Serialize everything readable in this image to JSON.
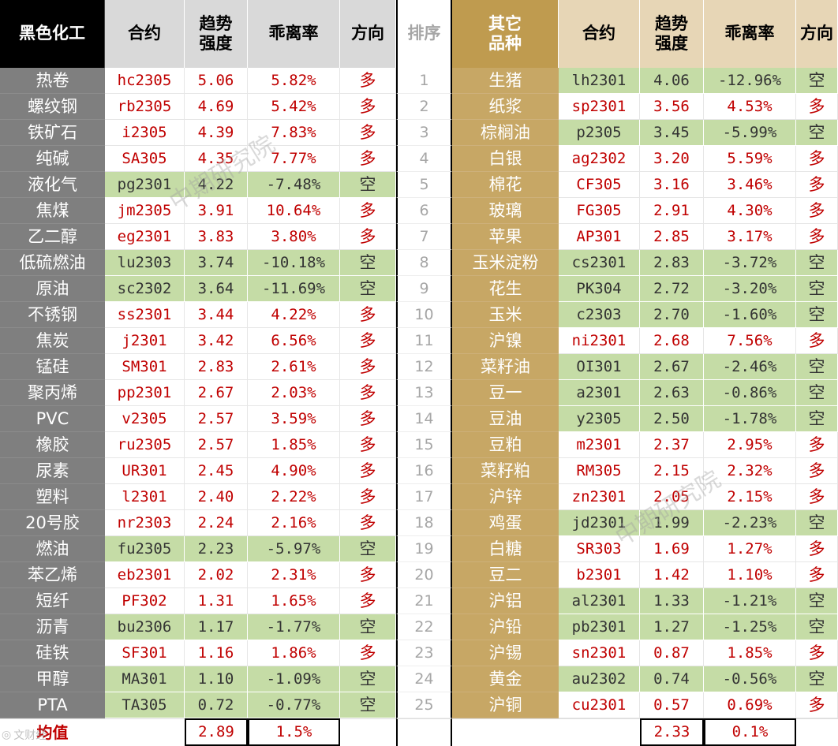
{
  "headers": {
    "left_group": "黑色化工",
    "contract": "合约",
    "trend": "趋势\n强度",
    "deviation": "乖离率",
    "direction": "方向",
    "rank": "排序",
    "right_group": "其它\n品种"
  },
  "colors": {
    "long_text": "#c00000",
    "short_fill": "#c5dca6",
    "left_header": "#000000",
    "left_name": "#7f7f7f",
    "right_header": "#bf9b4f",
    "right_name": "#c7a765"
  },
  "ranks": [
    "1",
    "2",
    "3",
    "4",
    "5",
    "6",
    "7",
    "8",
    "9",
    "10",
    "11",
    "12",
    "13",
    "14",
    "15",
    "16",
    "17",
    "18",
    "19",
    "20",
    "21",
    "22",
    "23",
    "24",
    "25"
  ],
  "left_rows": [
    {
      "name": "热卷",
      "contract": "hc2305",
      "trend": "5.06",
      "dev": "5.82%",
      "dir": "多"
    },
    {
      "name": "螺纹钢",
      "contract": "rb2305",
      "trend": "4.69",
      "dev": "5.42%",
      "dir": "多"
    },
    {
      "name": "铁矿石",
      "contract": "i2305",
      "trend": "4.39",
      "dev": "7.83%",
      "dir": "多"
    },
    {
      "name": "纯碱",
      "contract": "SA305",
      "trend": "4.35",
      "dev": "7.77%",
      "dir": "多"
    },
    {
      "name": "液化气",
      "contract": "pg2301",
      "trend": "4.22",
      "dev": "-7.48%",
      "dir": "空"
    },
    {
      "name": "焦煤",
      "contract": "jm2305",
      "trend": "3.91",
      "dev": "10.64%",
      "dir": "多"
    },
    {
      "name": "乙二醇",
      "contract": "eg2301",
      "trend": "3.83",
      "dev": "3.80%",
      "dir": "多"
    },
    {
      "name": "低硫燃油",
      "contract": "lu2303",
      "trend": "3.74",
      "dev": "-10.18%",
      "dir": "空"
    },
    {
      "name": "原油",
      "contract": "sc2302",
      "trend": "3.64",
      "dev": "-11.69%",
      "dir": "空"
    },
    {
      "name": "不锈钢",
      "contract": "ss2301",
      "trend": "3.44",
      "dev": "4.22%",
      "dir": "多"
    },
    {
      "name": "焦炭",
      "contract": "j2301",
      "trend": "3.42",
      "dev": "6.56%",
      "dir": "多"
    },
    {
      "name": "锰硅",
      "contract": "SM301",
      "trend": "2.83",
      "dev": "2.61%",
      "dir": "多"
    },
    {
      "name": "聚丙烯",
      "contract": "pp2301",
      "trend": "2.67",
      "dev": "2.03%",
      "dir": "多"
    },
    {
      "name": "PVC",
      "contract": "v2305",
      "trend": "2.57",
      "dev": "3.59%",
      "dir": "多"
    },
    {
      "name": "橡胶",
      "contract": "ru2305",
      "trend": "2.57",
      "dev": "1.85%",
      "dir": "多"
    },
    {
      "name": "尿素",
      "contract": "UR301",
      "trend": "2.45",
      "dev": "4.90%",
      "dir": "多"
    },
    {
      "name": "塑料",
      "contract": "l2301",
      "trend": "2.40",
      "dev": "2.22%",
      "dir": "多"
    },
    {
      "name": "20号胶",
      "contract": "nr2303",
      "trend": "2.24",
      "dev": "2.16%",
      "dir": "多"
    },
    {
      "name": "燃油",
      "contract": "fu2305",
      "trend": "2.23",
      "dev": "-5.97%",
      "dir": "空"
    },
    {
      "name": "苯乙烯",
      "contract": "eb2301",
      "trend": "2.02",
      "dev": "2.31%",
      "dir": "多"
    },
    {
      "name": "短纤",
      "contract": "PF302",
      "trend": "1.31",
      "dev": "1.65%",
      "dir": "多"
    },
    {
      "name": "沥青",
      "contract": "bu2306",
      "trend": "1.17",
      "dev": "-1.77%",
      "dir": "空"
    },
    {
      "name": "硅铁",
      "contract": "SF301",
      "trend": "1.16",
      "dev": "1.86%",
      "dir": "多"
    },
    {
      "name": "甲醇",
      "contract": "MA301",
      "trend": "1.10",
      "dev": "-1.09%",
      "dir": "空"
    },
    {
      "name": "PTA",
      "contract": "TA305",
      "trend": "0.72",
      "dev": "-0.77%",
      "dir": "空"
    }
  ],
  "right_rows": [
    {
      "name": "生猪",
      "contract": "lh2301",
      "trend": "4.06",
      "dev": "-12.96%",
      "dir": "空"
    },
    {
      "name": "纸浆",
      "contract": "sp2301",
      "trend": "3.56",
      "dev": "4.53%",
      "dir": "多"
    },
    {
      "name": "棕榈油",
      "contract": "p2305",
      "trend": "3.45",
      "dev": "-5.99%",
      "dir": "空"
    },
    {
      "name": "白银",
      "contract": "ag2302",
      "trend": "3.20",
      "dev": "5.59%",
      "dir": "多"
    },
    {
      "name": "棉花",
      "contract": "CF305",
      "trend": "3.16",
      "dev": "3.46%",
      "dir": "多"
    },
    {
      "name": "玻璃",
      "contract": "FG305",
      "trend": "2.91",
      "dev": "4.30%",
      "dir": "多"
    },
    {
      "name": "苹果",
      "contract": "AP301",
      "trend": "2.85",
      "dev": "3.17%",
      "dir": "多"
    },
    {
      "name": "玉米淀粉",
      "contract": "cs2301",
      "trend": "2.83",
      "dev": "-3.72%",
      "dir": "空"
    },
    {
      "name": "花生",
      "contract": "PK304",
      "trend": "2.72",
      "dev": "-3.20%",
      "dir": "空"
    },
    {
      "name": "玉米",
      "contract": "c2303",
      "trend": "2.70",
      "dev": "-1.60%",
      "dir": "空"
    },
    {
      "name": "沪镍",
      "contract": "ni2301",
      "trend": "2.68",
      "dev": "7.56%",
      "dir": "多"
    },
    {
      "name": "菜籽油",
      "contract": "OI301",
      "trend": "2.67",
      "dev": "-2.46%",
      "dir": "空"
    },
    {
      "name": "豆一",
      "contract": "a2301",
      "trend": "2.63",
      "dev": "-0.86%",
      "dir": "空"
    },
    {
      "name": "豆油",
      "contract": "y2305",
      "trend": "2.50",
      "dev": "-1.78%",
      "dir": "空"
    },
    {
      "name": "豆粕",
      "contract": "m2301",
      "trend": "2.37",
      "dev": "2.95%",
      "dir": "多"
    },
    {
      "name": "菜籽粕",
      "contract": "RM305",
      "trend": "2.15",
      "dev": "2.32%",
      "dir": "多"
    },
    {
      "name": "沪锌",
      "contract": "zn2301",
      "trend": "2.05",
      "dev": "2.15%",
      "dir": "多"
    },
    {
      "name": "鸡蛋",
      "contract": "jd2301",
      "trend": "1.99",
      "dev": "-2.23%",
      "dir": "空"
    },
    {
      "name": "白糖",
      "contract": "SR303",
      "trend": "1.69",
      "dev": "1.27%",
      "dir": "多"
    },
    {
      "name": "豆二",
      "contract": "b2301",
      "trend": "1.42",
      "dev": "1.10%",
      "dir": "多"
    },
    {
      "name": "沪铝",
      "contract": "al2301",
      "trend": "1.33",
      "dev": "-1.21%",
      "dir": "空"
    },
    {
      "name": "沪铅",
      "contract": "pb2301",
      "trend": "1.27",
      "dev": "-1.25%",
      "dir": "空"
    },
    {
      "name": "沪锡",
      "contract": "sn2301",
      "trend": "0.87",
      "dev": "1.85%",
      "dir": "多"
    },
    {
      "name": "黄金",
      "contract": "au2302",
      "trend": "0.74",
      "dev": "-0.56%",
      "dir": "空"
    },
    {
      "name": "沪铜",
      "contract": "cu2301",
      "trend": "0.57",
      "dev": "0.69%",
      "dir": "多"
    }
  ],
  "footer": {
    "label": "均值",
    "left_trend_avg": "2.89",
    "left_dev_avg": "1.5%",
    "right_trend_avg": "2.33",
    "right_dev_avg": "0.1%"
  },
  "watermark": {
    "text": "中期研究院",
    "corner_text": "文财经"
  }
}
